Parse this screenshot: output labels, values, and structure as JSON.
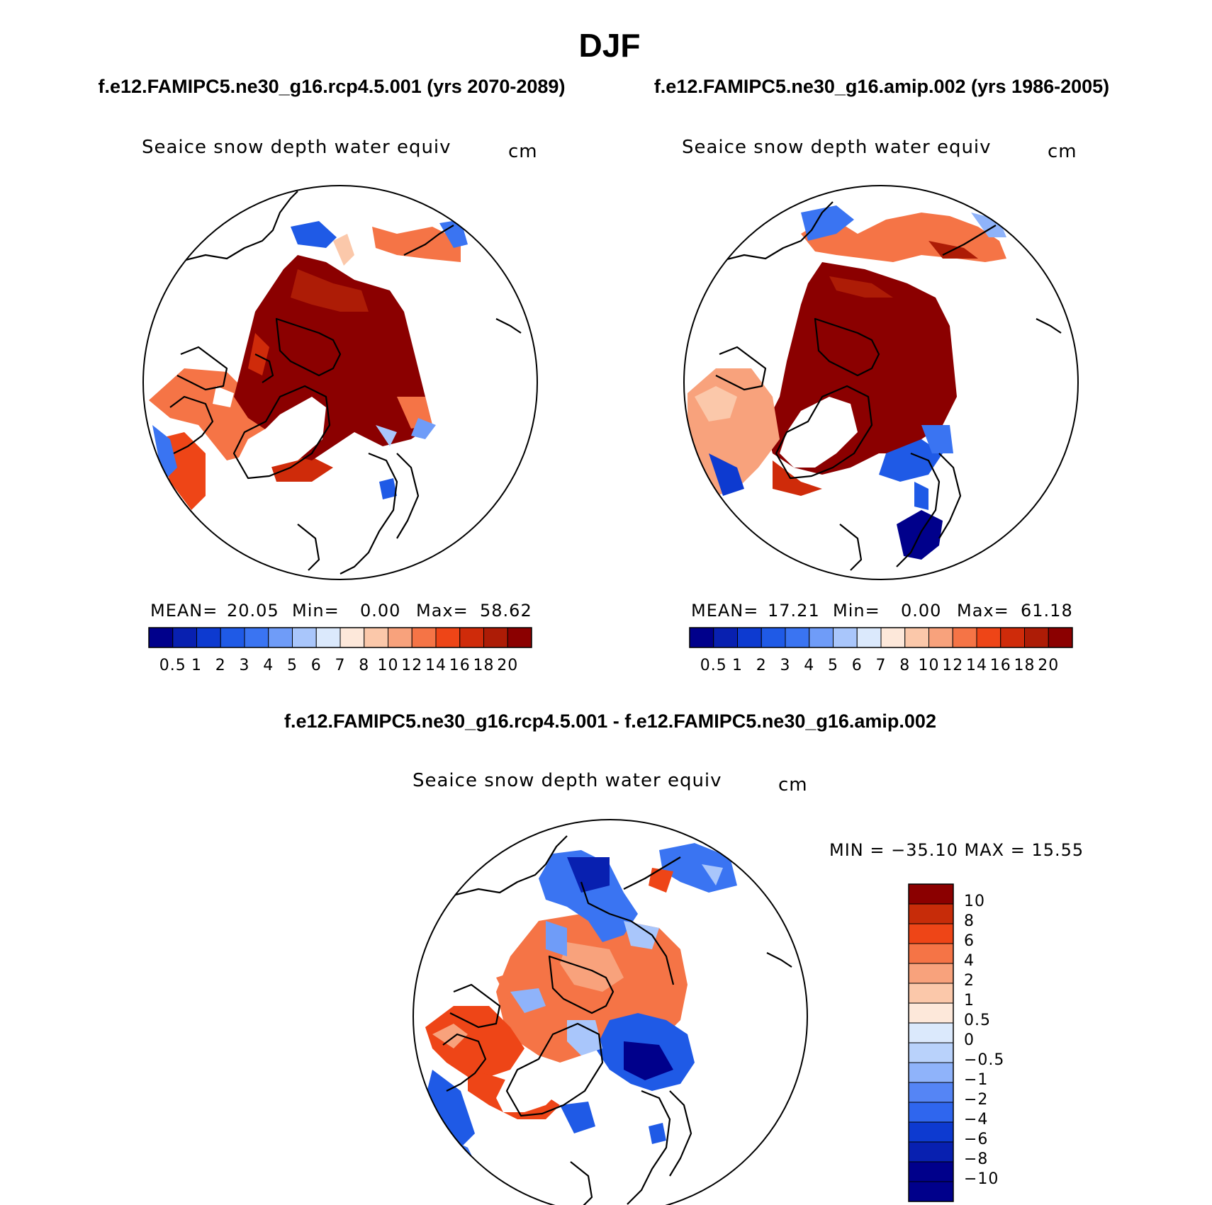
{
  "title": "DJF",
  "colors": {
    "seq": [
      "#00008b",
      "#0820b0",
      "#0d3ad0",
      "#1f5ae6",
      "#3a74f2",
      "#6f9cf8",
      "#a9c6fb",
      "#dbe9fc",
      "#fde8da",
      "#fbc8aa",
      "#f8a27c",
      "#f57446",
      "#ee4517",
      "#cf2b0a",
      "#ad1c06",
      "#8b0000"
    ],
    "div": [
      "#00008b",
      "#0820b0",
      "#0d3ad0",
      "#2f66ee",
      "#5585f5",
      "#8fb3fa",
      "#b9d2fb",
      "#dbe9fc",
      "#fde8da",
      "#fbc8aa",
      "#f8a27c",
      "#f57446",
      "#ee4517",
      "#c72c09",
      "#8b0000"
    ],
    "land": "#ffffff",
    "line": "#000000"
  },
  "panels": [
    {
      "id": "rcp45",
      "header": "f.e12.FAMIPC5.ne30_g16.rcp4.5.001 (yrs 2070-2089)",
      "field": "Seaice snow depth water equiv",
      "units": "cm",
      "stats": {
        "mean_label": "MEAN=",
        "mean": "20.05",
        "min_label": "Min=",
        "min": "0.00",
        "max_label": "Max=",
        "max": "58.62"
      },
      "colorbar_labels": [
        "0.5",
        "1",
        "2",
        "3",
        "4",
        "5",
        "6",
        "7",
        "8",
        "10",
        "12",
        "14",
        "16",
        "18",
        "20"
      ]
    },
    {
      "id": "amip",
      "header": "f.e12.FAMIPC5.ne30_g16.amip.002 (yrs 1986-2005)",
      "field": "Seaice snow depth water equiv",
      "units": "cm",
      "stats": {
        "mean_label": "MEAN=",
        "mean": "17.21",
        "min_label": "Min=",
        "min": "0.00",
        "max_label": "Max=",
        "max": "61.18"
      },
      "colorbar_labels": [
        "0.5",
        "1",
        "2",
        "3",
        "4",
        "5",
        "6",
        "7",
        "8",
        "10",
        "12",
        "14",
        "16",
        "18",
        "20"
      ]
    }
  ],
  "difference": {
    "header": "f.e12.FAMIPC5.ne30_g16.rcp4.5.001 - f.e12.FAMIPC5.ne30_g16.amip.002",
    "field": "Seaice snow depth water equiv",
    "units": "cm",
    "minmax": "MIN = −35.10 MAX =  15.55",
    "colorbar_labels": [
      "10",
      "8",
      "6",
      "4",
      "2",
      "1",
      "0.5",
      "0",
      "−0.5",
      "−1",
      "−2",
      "−4",
      "−6",
      "−8",
      "−10"
    ]
  }
}
